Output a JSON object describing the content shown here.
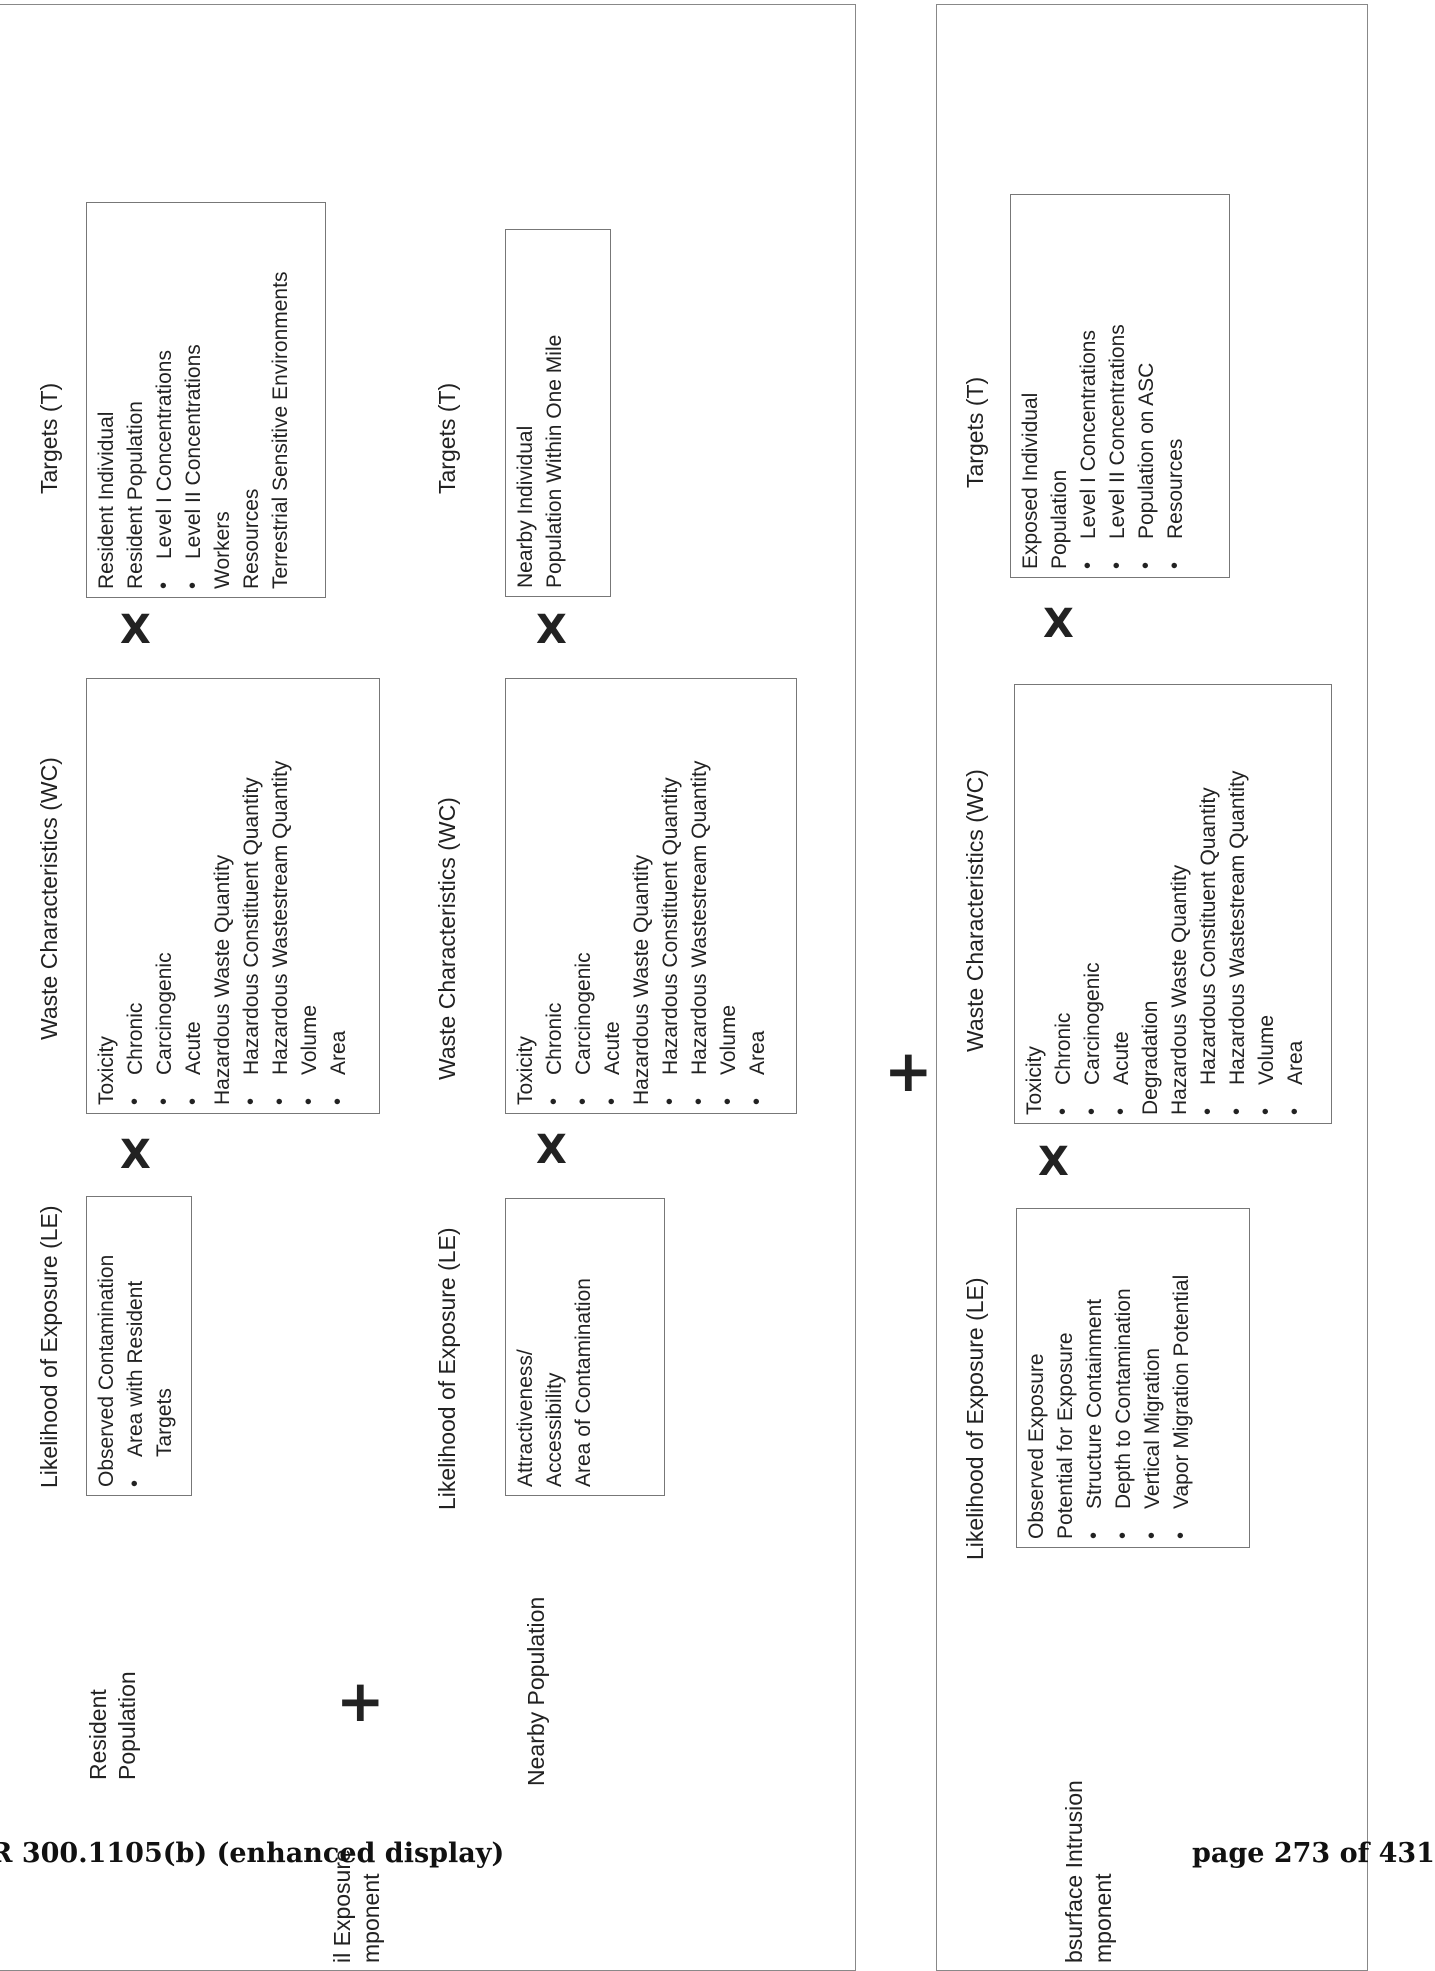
{
  "groups": {
    "resident_population": {
      "label": [
        "Resident",
        "Population"
      ],
      "le": {
        "heading": "Likelihood of Exposure (LE)",
        "lines": [
          {
            "text": "Observed Contamination",
            "indent": 0
          },
          {
            "text": "Area with Resident",
            "indent": 1
          },
          {
            "text": "Targets",
            "indent": 2
          }
        ]
      },
      "wc": {
        "heading": "Waste Characteristics (WC)",
        "lines": [
          {
            "text": "Toxicity",
            "indent": 0
          },
          {
            "text": "Chronic",
            "indent": 1
          },
          {
            "text": "Carcinogenic",
            "indent": 1
          },
          {
            "text": "Acute",
            "indent": 1
          },
          {
            "text": "Hazardous Waste Quantity",
            "indent": 0
          },
          {
            "text": "Hazardous Constituent Quantity",
            "indent": 1
          },
          {
            "text": "Hazardous Wastestream Quantity",
            "indent": 1
          },
          {
            "text": "Volume",
            "indent": 1
          },
          {
            "text": "Area",
            "indent": 1
          }
        ]
      },
      "t": {
        "heading": "Targets (T)",
        "lines": [
          {
            "text": "Resident Individual",
            "indent": 0
          },
          {
            "text": "Resident Population",
            "indent": 0
          },
          {
            "text": "Level I Concentrations",
            "indent": 1
          },
          {
            "text": "Level II Concentrations",
            "indent": 1
          },
          {
            "text": "Workers",
            "indent": 0
          },
          {
            "text": "Resources",
            "indent": 0
          },
          {
            "text": "Terrestrial Sensitive Environments",
            "indent": 0
          }
        ]
      }
    },
    "nearby_population": {
      "label": [
        "Nearby Population"
      ],
      "le": {
        "heading": "Likelihood of Exposure (LE)",
        "lines": [
          {
            "text": "Attractiveness/",
            "indent": 0
          },
          {
            "text": "Accessibility",
            "indent": 0
          },
          {
            "text": "Area of Contamination",
            "indent": 0
          }
        ]
      },
      "wc": {
        "heading": "Waste Characteristics (WC)",
        "lines": [
          {
            "text": "Toxicity",
            "indent": 0
          },
          {
            "text": "Chronic",
            "indent": 1
          },
          {
            "text": "Carcinogenic",
            "indent": 1
          },
          {
            "text": "Acute",
            "indent": 1
          },
          {
            "text": "Hazardous Waste Quantity",
            "indent": 0
          },
          {
            "text": "Hazardous Constituent Quantity",
            "indent": 1
          },
          {
            "text": "Hazardous Wastestream Quantity",
            "indent": 1
          },
          {
            "text": "Volume",
            "indent": 1
          },
          {
            "text": "Area",
            "indent": 1
          }
        ]
      },
      "t": {
        "heading": "Targets (T)",
        "lines": [
          {
            "text": "Nearby Individual",
            "indent": 0
          },
          {
            "text": "Population Within One Mile",
            "indent": 0
          }
        ]
      }
    },
    "subsurface": {
      "le": {
        "heading": "Likelihood of Exposure (LE)",
        "lines": [
          {
            "text": "Observed Exposure",
            "indent": 0
          },
          {
            "text": "Potential for Exposure",
            "indent": 0
          },
          {
            "text": "Structure Containment",
            "indent": 1
          },
          {
            "text": "Depth to Contamination",
            "indent": 1
          },
          {
            "text": "Vertical Migration",
            "indent": 1
          },
          {
            "text": "Vapor Migration Potential",
            "indent": 1
          }
        ]
      },
      "wc": {
        "heading": "Waste Characteristics (WC)",
        "lines": [
          {
            "text": "Toxicity",
            "indent": 0
          },
          {
            "text": "Chronic",
            "indent": 1
          },
          {
            "text": "Carcinogenic",
            "indent": 1
          },
          {
            "text": "Acute",
            "indent": 1
          },
          {
            "text": "Degradation",
            "indent": 0
          },
          {
            "text": "Hazardous Waste Quantity",
            "indent": 0
          },
          {
            "text": "Hazardous Constituent Quantity",
            "indent": 1
          },
          {
            "text": "Hazardous Wastestream Quantity",
            "indent": 1
          },
          {
            "text": "Volume",
            "indent": 1
          },
          {
            "text": "Area",
            "indent": 1
          }
        ]
      },
      "t": {
        "heading": "Targets (T)",
        "lines": [
          {
            "text": "Exposed Individual",
            "indent": 0
          },
          {
            "text": "Population",
            "indent": 0
          },
          {
            "text": "Level I Concentrations",
            "indent": 1
          },
          {
            "text": "Level II Concentrations",
            "indent": 1
          },
          {
            "text": "Population on ASC",
            "indent": 1
          },
          {
            "text": "Resources",
            "indent": 1
          }
        ]
      }
    }
  },
  "components": {
    "soil": [
      "il Exposure",
      "mponent"
    ],
    "subsurface": [
      "bsurface Intrusion",
      "mponent"
    ]
  },
  "operators": {
    "times": "X",
    "plus": "+"
  },
  "footer": {
    "left": "R 300.1105(b) (enhanced display)",
    "right": "page 273 of 431"
  }
}
